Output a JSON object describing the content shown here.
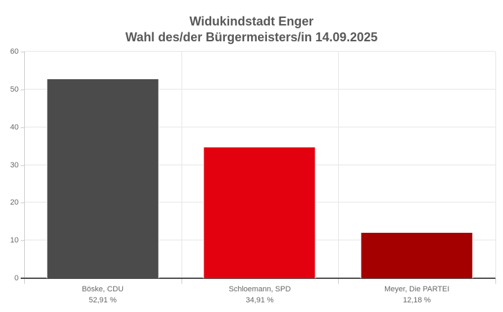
{
  "chart_data": {
    "type": "bar",
    "title": "Widukindstadt Enger",
    "subtitle": "Wahl des/der Bürgermeisters/in 14.09.2025",
    "categories": [
      "Böske, CDU",
      "Schloemann, SPD",
      "Meyer, Die PARTEI"
    ],
    "values": [
      52.91,
      34.91,
      12.18
    ],
    "value_labels": [
      "52,91 %",
      "34,91 %",
      "12,18 %"
    ],
    "bar_colors": [
      "#4b4b4b",
      "#e3000f",
      "#a40000"
    ],
    "xlabel": "",
    "ylabel": "",
    "ylim": [
      0,
      60
    ],
    "yticks": [
      0,
      10,
      20,
      30,
      40,
      50,
      60
    ],
    "grid": true,
    "legend": "none"
  },
  "style": {
    "background": "#ffffff",
    "title_color": "#595959",
    "label_color": "#666666",
    "grid_color": "#e6e6e6",
    "axis_color": "#cccccc",
    "baseline_color": "#4d4d4d",
    "bar_border_color": "#ffffff"
  }
}
